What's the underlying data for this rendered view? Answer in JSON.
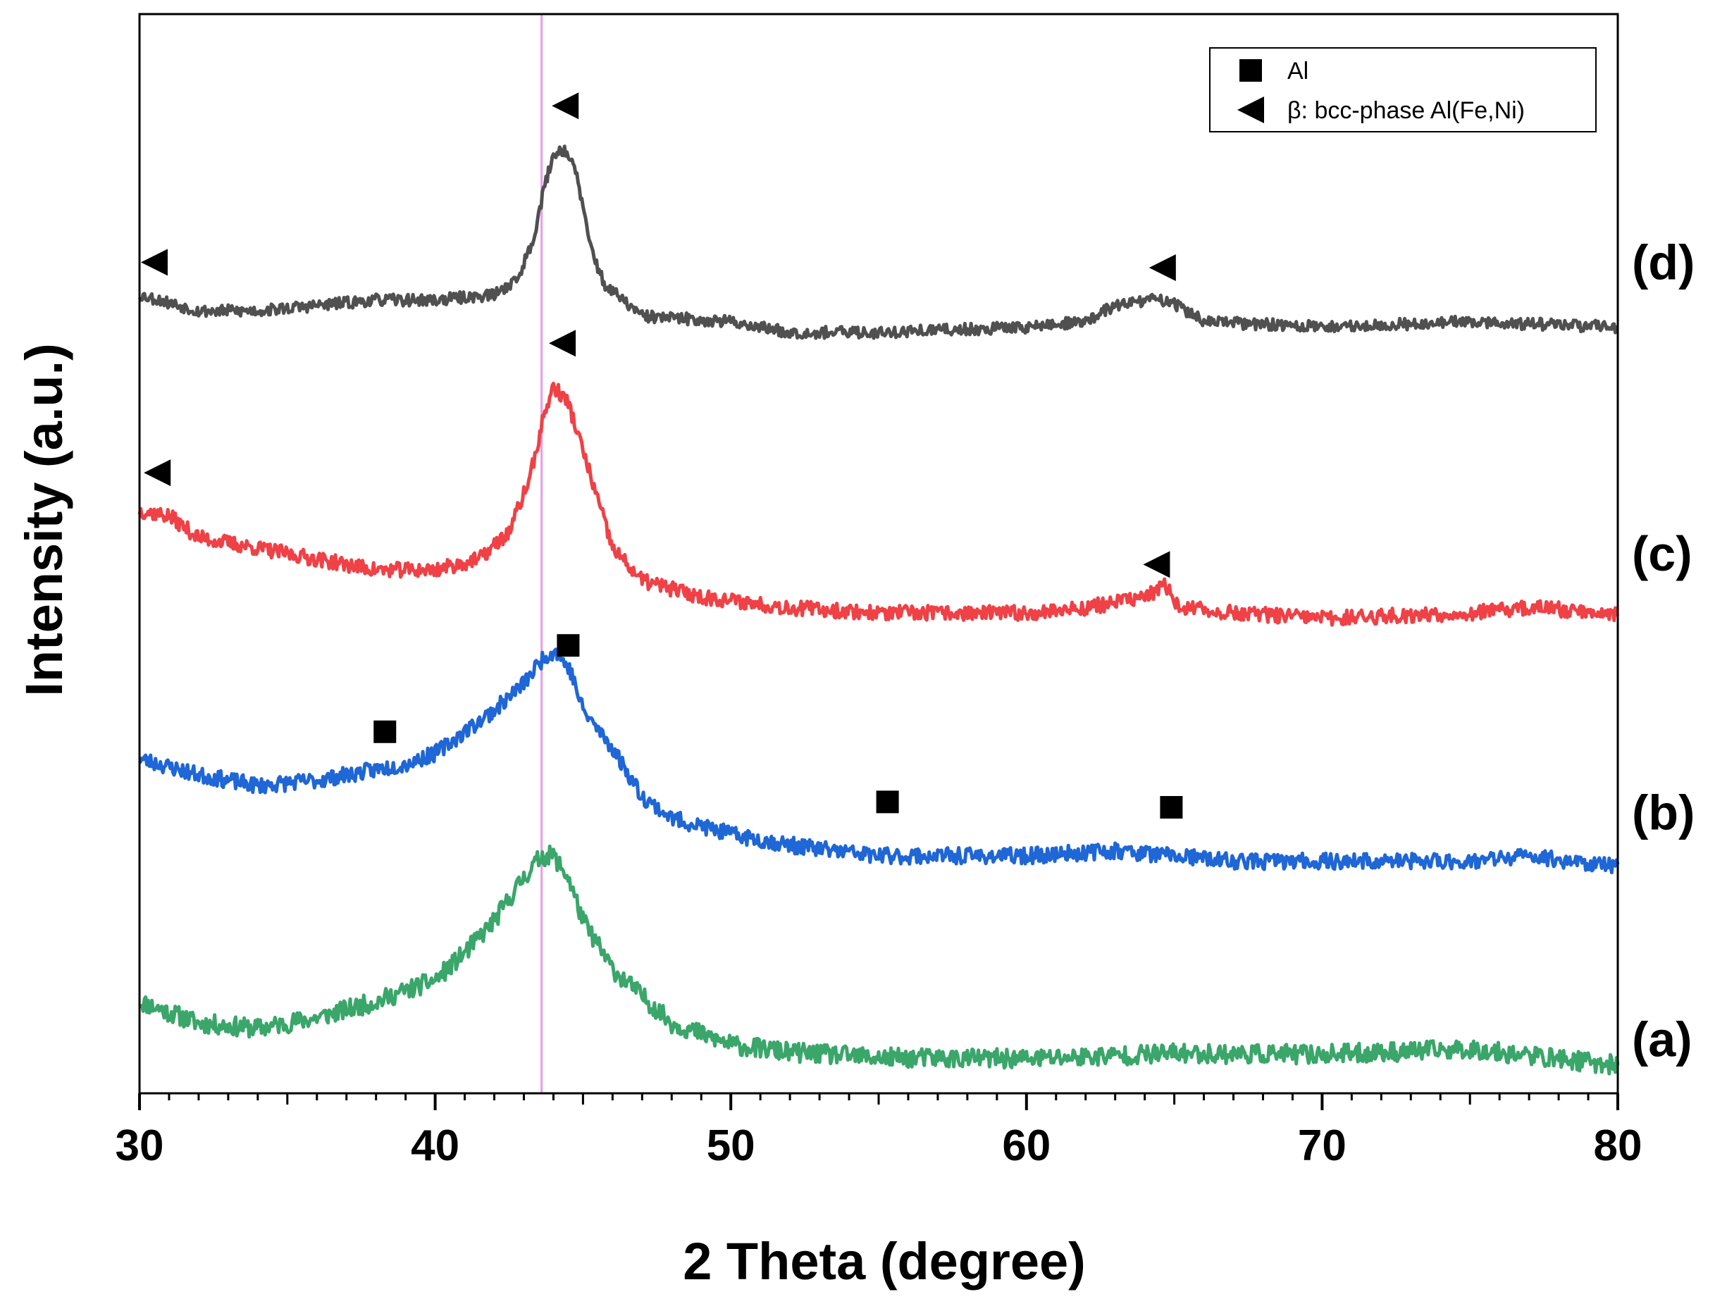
{
  "chart_data": {
    "type": "line",
    "title": "",
    "xlabel": "2 Theta (degree)",
    "ylabel": "Intensity (a.u.)",
    "xlim": [
      30,
      80
    ],
    "ylim": [
      0,
      100
    ],
    "x_ticks": [
      30,
      40,
      50,
      60,
      70,
      80
    ],
    "x_tick_labels": [
      "30",
      "40",
      "50",
      "60",
      "70",
      "80"
    ],
    "y_ticks_shown": false,
    "reference_line": {
      "x": 43.6,
      "color": "#e89be8"
    },
    "legend": {
      "position": "top-right",
      "entries": [
        {
          "marker": "square",
          "label": "Al"
        },
        {
          "marker": "triangle-left",
          "label": "β: bcc-phase Al(Fe,Ni)"
        }
      ]
    },
    "series": [
      {
        "name": "(a)",
        "color": "#3aa66a",
        "seed": 11,
        "noise": 0.9,
        "points": [
          [
            30,
            8.5
          ],
          [
            32,
            6.5
          ],
          [
            34,
            6.0
          ],
          [
            36,
            7.0
          ],
          [
            38,
            8.5
          ],
          [
            40,
            10.5
          ],
          [
            41,
            13
          ],
          [
            42,
            16
          ],
          [
            43,
            20
          ],
          [
            43.6,
            22
          ],
          [
            44,
            22
          ],
          [
            44.5,
            20
          ],
          [
            45,
            16
          ],
          [
            46,
            11.5
          ],
          [
            47,
            9
          ],
          [
            48,
            6.5
          ],
          [
            50,
            4.5
          ],
          [
            52,
            3.8
          ],
          [
            55,
            3.3
          ],
          [
            60,
            3.2
          ],
          [
            65,
            3.7
          ],
          [
            70,
            3.6
          ],
          [
            75,
            4.1
          ],
          [
            80,
            2.6
          ]
        ]
      },
      {
        "name": "(b)",
        "color": "#1f66d6",
        "seed": 23,
        "noise": 0.75,
        "points": [
          [
            30,
            31
          ],
          [
            32,
            29.5
          ],
          [
            34,
            28.5
          ],
          [
            36,
            29
          ],
          [
            38,
            30
          ],
          [
            39,
            30.5
          ],
          [
            40,
            31.5
          ],
          [
            41,
            33.5
          ],
          [
            42,
            35.5
          ],
          [
            43,
            38
          ],
          [
            43.7,
            40.5
          ],
          [
            44.1,
            41
          ],
          [
            44.6,
            39
          ],
          [
            45,
            35.5
          ],
          [
            46,
            32
          ],
          [
            47,
            27.5
          ],
          [
            48,
            25.5
          ],
          [
            50,
            24
          ],
          [
            52,
            23
          ],
          [
            55,
            22
          ],
          [
            58,
            22
          ],
          [
            60,
            22
          ],
          [
            63,
            22.5
          ],
          [
            65,
            22
          ],
          [
            67,
            21.5
          ],
          [
            70,
            21.5
          ],
          [
            75,
            21.5
          ],
          [
            77,
            22
          ],
          [
            80,
            21
          ]
        ]
      },
      {
        "name": "(c)",
        "color": "#ef4146",
        "seed": 37,
        "noise": 0.7,
        "points": [
          [
            30,
            54
          ],
          [
            31,
            53.5
          ],
          [
            32,
            51.5
          ],
          [
            34,
            50.5
          ],
          [
            36,
            49.5
          ],
          [
            38,
            48.5
          ],
          [
            40,
            48.5
          ],
          [
            41.5,
            49.5
          ],
          [
            42.5,
            52
          ],
          [
            43.2,
            57
          ],
          [
            43.7,
            63
          ],
          [
            44,
            65.5
          ],
          [
            44.5,
            64
          ],
          [
            45,
            59.5
          ],
          [
            45.5,
            55
          ],
          [
            46,
            50.5
          ],
          [
            47,
            47.5
          ],
          [
            49,
            46
          ],
          [
            52,
            45
          ],
          [
            55,
            44.5
          ],
          [
            58,
            44.5
          ],
          [
            60,
            44.5
          ],
          [
            62,
            45
          ],
          [
            64,
            46
          ],
          [
            64.7,
            47
          ],
          [
            65.2,
            45
          ],
          [
            67,
            44.5
          ],
          [
            70,
            44
          ],
          [
            75,
            44.5
          ],
          [
            77,
            45
          ],
          [
            80,
            44.5
          ]
        ]
      },
      {
        "name": "(d)",
        "color": "#505050",
        "seed": 53,
        "noise": 0.55,
        "points": [
          [
            30,
            74
          ],
          [
            32,
            72.5
          ],
          [
            34,
            72.5
          ],
          [
            36,
            73
          ],
          [
            38,
            73.5
          ],
          [
            40,
            73.5
          ],
          [
            42,
            74
          ],
          [
            42.8,
            75.5
          ],
          [
            43.3,
            79
          ],
          [
            43.7,
            84
          ],
          [
            44,
            87
          ],
          [
            44.4,
            87.5
          ],
          [
            44.8,
            85
          ],
          [
            45.2,
            79
          ],
          [
            45.7,
            75
          ],
          [
            47,
            72
          ],
          [
            50,
            71.5
          ],
          [
            52,
            70.5
          ],
          [
            55,
            70.5
          ],
          [
            60,
            71
          ],
          [
            62,
            71.5
          ],
          [
            63,
            73
          ],
          [
            64,
            73.5
          ],
          [
            64.8,
            73.5
          ],
          [
            66,
            71.5
          ],
          [
            70,
            71
          ],
          [
            75,
            71.5
          ],
          [
            80,
            71
          ]
        ]
      }
    ],
    "series_labels": [
      {
        "text": "(a)",
        "y": 5
      },
      {
        "text": "(b)",
        "y": 26
      },
      {
        "text": "(c)",
        "y": 50
      },
      {
        "text": "(d)",
        "y": 77
      }
    ],
    "annotations": [
      {
        "marker": "triangle-left",
        "x": 30.5,
        "y": 77
      },
      {
        "marker": "triangle-left",
        "x": 44.4,
        "y": 91.5
      },
      {
        "marker": "triangle-left",
        "x": 64.6,
        "y": 76.5
      },
      {
        "marker": "triangle-left",
        "x": 30.6,
        "y": 57.5
      },
      {
        "marker": "triangle-left",
        "x": 44.3,
        "y": 69.5
      },
      {
        "marker": "triangle-left",
        "x": 64.4,
        "y": 49
      },
      {
        "marker": "square",
        "x": 38.3,
        "y": 33.5
      },
      {
        "marker": "square",
        "x": 44.5,
        "y": 41.5
      },
      {
        "marker": "square",
        "x": 55.3,
        "y": 27
      },
      {
        "marker": "square",
        "x": 64.9,
        "y": 26.5
      }
    ]
  }
}
